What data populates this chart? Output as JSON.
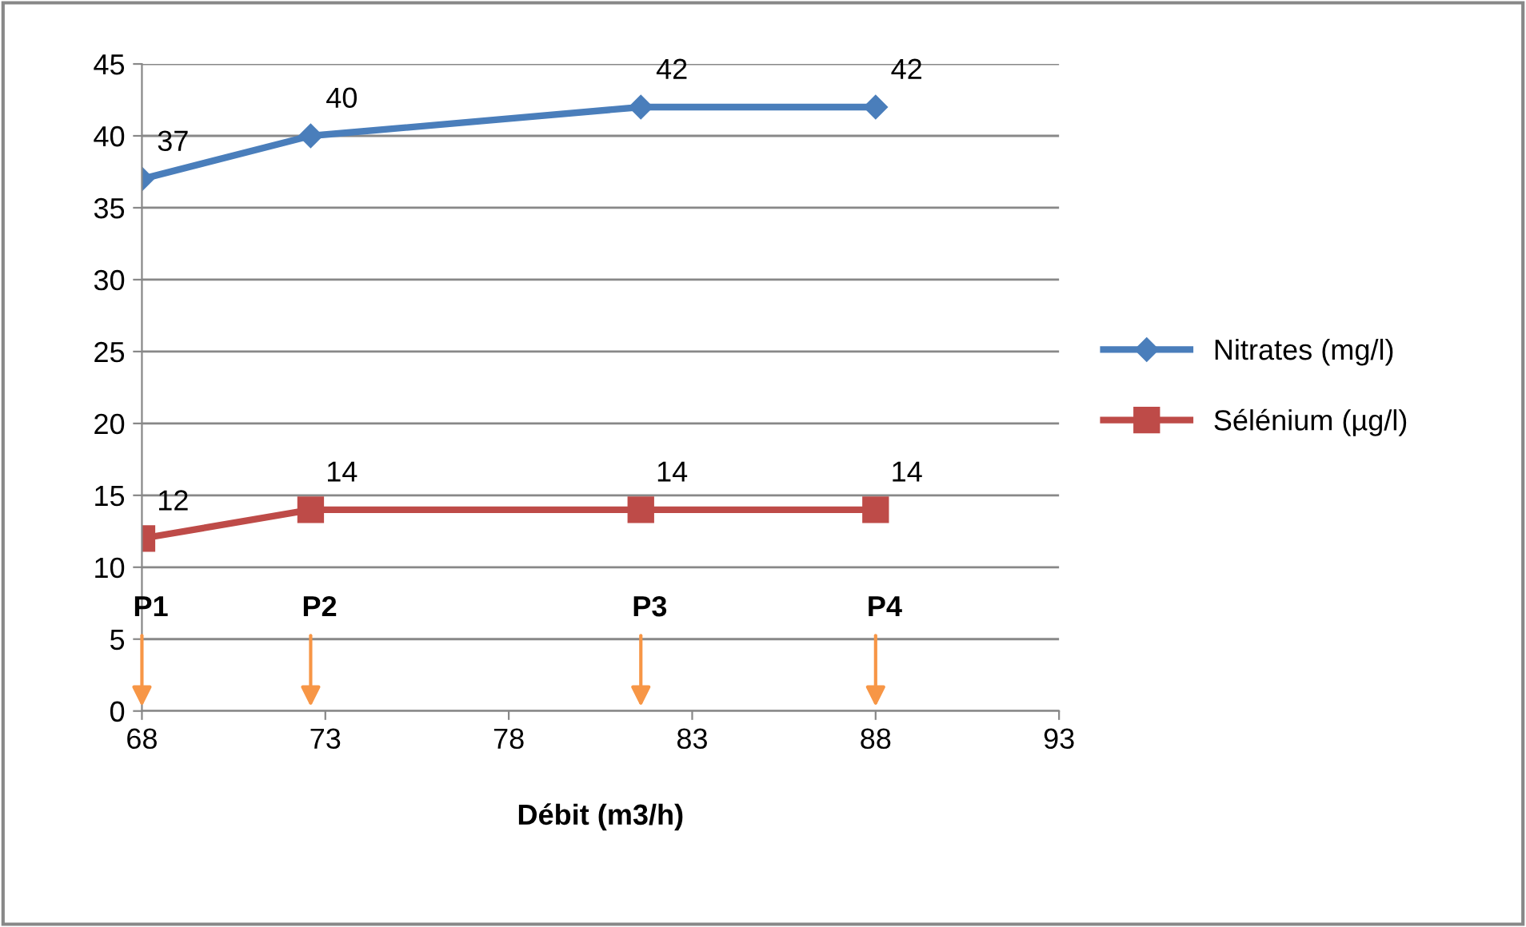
{
  "chart_data": {
    "type": "line",
    "xlabel": "Débit (m3/h)",
    "x": [
      68,
      72.6,
      81.6,
      88
    ],
    "series": [
      {
        "name": "Nitrates (mg/l)",
        "color": "#4a7ebb",
        "marker": "diamond",
        "values": [
          37,
          40,
          42,
          42
        ]
      },
      {
        "name": "Sélénium (µg/l)",
        "color": "#be4b48",
        "marker": "square",
        "values": [
          12,
          14,
          14,
          14
        ]
      }
    ],
    "xlim": [
      68,
      93
    ],
    "xticks": [
      68,
      73,
      78,
      83,
      88,
      93
    ],
    "ylim": [
      0,
      45
    ],
    "yticks": [
      0,
      5,
      10,
      15,
      20,
      25,
      30,
      35,
      40,
      45
    ],
    "grid": "y",
    "legend": "right",
    "data_labels": true,
    "line_style": "solid",
    "annotations": [
      "P1",
      "P2",
      "P3",
      "P4"
    ]
  }
}
